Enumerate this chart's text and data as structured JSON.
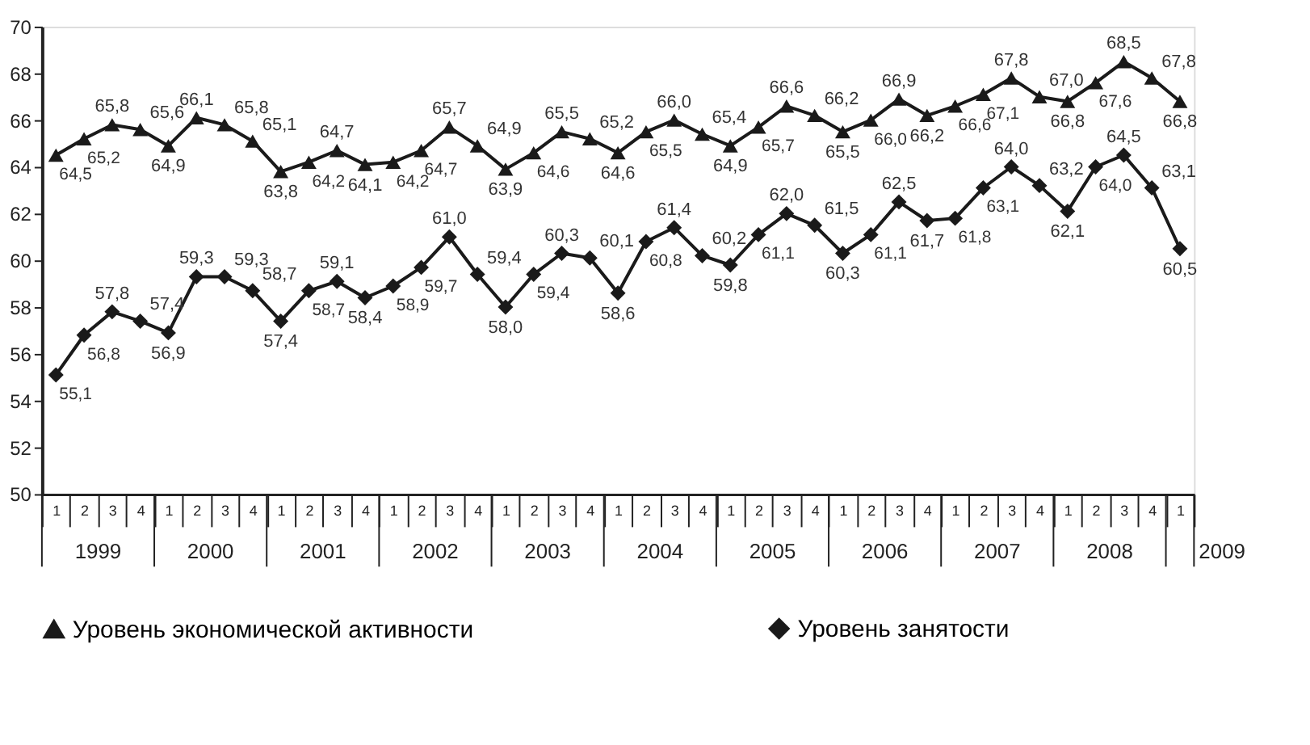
{
  "chart_data": {
    "type": "line",
    "categories": [
      "1",
      "2",
      "3",
      "4",
      "1",
      "2",
      "3",
      "4",
      "1",
      "2",
      "3",
      "4",
      "1",
      "2",
      "3",
      "4",
      "1",
      "2",
      "3",
      "4",
      "1",
      "2",
      "3",
      "4",
      "1",
      "2",
      "3",
      "4",
      "1",
      "2",
      "3",
      "4",
      "1",
      "2",
      "3",
      "4",
      "1",
      "2",
      "3",
      "4",
      "1"
    ],
    "annotations": [
      "1999",
      "2000",
      "2001",
      "2002",
      "2003",
      "2004",
      "2005",
      "2006",
      "2007",
      "2008",
      "2009"
    ],
    "ylim": [
      50,
      70
    ],
    "yticks": [
      50,
      52,
      54,
      56,
      58,
      60,
      62,
      64,
      66,
      68,
      70
    ],
    "grid": false,
    "legend": "bottom",
    "line_style": "solid",
    "series": [
      {
        "name": "Уровень экономической активности",
        "color": "#1a1a1a",
        "marker": "triangle",
        "values": [
          64.5,
          65.2,
          65.8,
          65.6,
          64.9,
          66.1,
          65.8,
          65.1,
          63.8,
          64.2,
          64.7,
          64.1,
          64.2,
          64.7,
          65.7,
          64.9,
          63.9,
          64.6,
          65.5,
          65.2,
          64.6,
          65.5,
          66.0,
          65.4,
          64.9,
          65.7,
          66.6,
          66.2,
          65.5,
          66.0,
          66.9,
          66.2,
          66.6,
          67.1,
          67.8,
          67.0,
          66.8,
          67.6,
          68.5,
          67.8,
          66.8
        ],
        "value_labels": [
          "64,5",
          "65,2",
          "65,8",
          "65,6",
          "64,9",
          "66,1",
          "65,8",
          "65,1",
          "63,8",
          "64,2",
          "64,7",
          "64,1",
          "64,2",
          "64,7",
          "65,7",
          "64,9",
          "63,9",
          "64,6",
          "65,5",
          "65,2",
          "64,6",
          "65,5",
          "66,0",
          "65,4",
          "64,9",
          "65,7",
          "66,6",
          "66,2",
          "65,5",
          "66,0",
          "66,9",
          "66,2",
          "66,6",
          "67,1",
          "67,8",
          "67,0",
          "66,8",
          "67,6",
          "68,5",
          "67,8",
          "66,8"
        ]
      },
      {
        "name": "Уровень занятости",
        "color": "#1a1a1a",
        "marker": "diamond",
        "values": [
          55.1,
          56.8,
          57.8,
          57.4,
          56.9,
          59.3,
          59.3,
          58.7,
          57.4,
          58.7,
          59.1,
          58.4,
          58.9,
          59.7,
          61.0,
          59.4,
          58.0,
          59.4,
          60.3,
          60.1,
          58.6,
          60.8,
          61.4,
          60.2,
          59.8,
          61.1,
          62.0,
          61.5,
          60.3,
          61.1,
          62.5,
          61.7,
          61.8,
          63.1,
          64.0,
          63.2,
          62.1,
          64.0,
          64.5,
          63.1,
          60.5
        ],
        "value_labels": [
          "55,1",
          "56,8",
          "57,8",
          "57,4",
          "56,9",
          "59,3",
          "59,3",
          "58,7",
          "57,4",
          "58,7",
          "59,1",
          "58,4",
          "58,9",
          "59,7",
          "61,0",
          "59,4",
          "58,0",
          "59,4",
          "60,3",
          "60,1",
          "58,6",
          "60,8",
          "61,4",
          "60,2",
          "59,8",
          "61,1",
          "62,0",
          "61,5",
          "60,3",
          "61,1",
          "62,5",
          "61,7",
          "61,8",
          "63,1",
          "64,0",
          "63,2",
          "62,1",
          "64,0",
          "64,5",
          "63,1",
          "60,5"
        ]
      }
    ]
  }
}
